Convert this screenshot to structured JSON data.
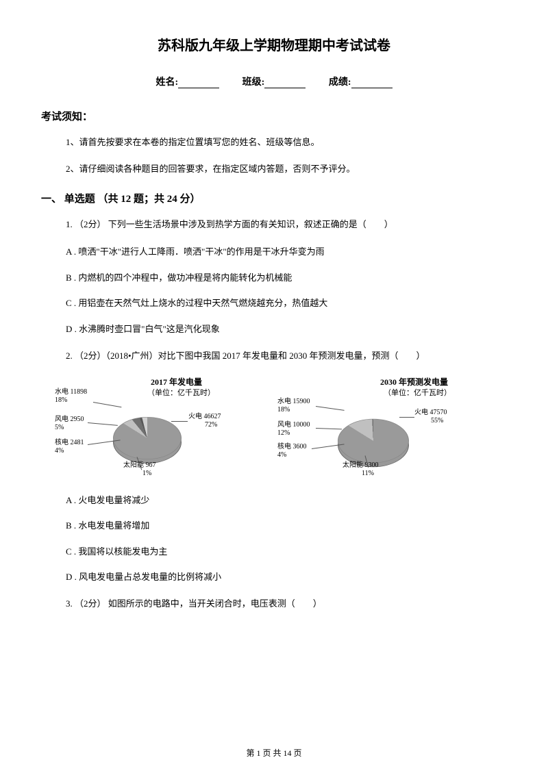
{
  "title": "苏科版九年级上学期物理期中考试试卷",
  "info": {
    "name_label": "姓名:",
    "class_label": "班级:",
    "score_label": "成绩:"
  },
  "notice_head": "考试须知：",
  "instructions": [
    "1、请首先按要求在本卷的指定位置填写您的姓名、班级等信息。",
    "2、请仔细阅读各种题目的回答要求，在指定区域内答题，否则不予评分。"
  ],
  "section1_title": "一、 单选题 （共 12 题；共 24 分）",
  "q1": {
    "stem": "1. （2分） 下列一些生活场景中涉及到热学方面的有关知识，叙述正确的是（　　）",
    "opts": [
      "A . 喷洒\"干冰\"进行人工降雨．喷洒\"干冰\"的作用是干冰升华变为雨",
      "B . 内燃机的四个冲程中，做功冲程是将内能转化为机械能",
      "C . 用铝壶在天然气灶上烧水的过程中天然气燃烧越充分，热值越大",
      "D . 水沸腾时壶口冒\"白气\"这是汽化现象"
    ]
  },
  "q2": {
    "stem": "2. （2分）（2018•广州）对比下图中我国 2017 年发电量和 2030 年预测发电量，预测（　　）",
    "opts": [
      "A . 火电发电量将减少",
      "B . 水电发电量将增加",
      "C . 我国将以核能发电为主",
      "D . 风电发电量占总发电量的比例将减小"
    ]
  },
  "q3": {
    "stem": "3. （2分） 如图所示的电路中，当开关闭合时，电压表测（　　）"
  },
  "chart2017": {
    "title": "2017 年发电量",
    "subtitle": "（单位：亿千瓦时）",
    "labels": {
      "hydro": "水电",
      "wind": "风电",
      "nuclear": "核电",
      "solar": "太阳能",
      "thermal": "火电"
    },
    "values": {
      "hydro_v": "11898",
      "hydro_p": "18%",
      "wind_v": "2950",
      "wind_p": "5%",
      "nuclear_v": "2481",
      "nuclear_p": "4%",
      "solar_v": "967",
      "solar_p": "1%",
      "thermal_v": "46627",
      "thermal_p": "72%"
    },
    "colors": {
      "thermal": "#d0d0d0",
      "hydro": "#9a9a9a",
      "wind": "#c0c0c0",
      "nuclear": "#707070",
      "solar": "#585858"
    },
    "slices_deg": {
      "thermal": 259,
      "hydro": 65,
      "wind": 18,
      "nuclear": 14,
      "solar": 4
    }
  },
  "chart2030": {
    "title": "2030 年预测发电量",
    "subtitle": "（单位：亿千瓦时）",
    "labels": {
      "hydro": "水电",
      "wind": "风电",
      "nuclear": "核电",
      "solar": "太阳能",
      "thermal": "火电"
    },
    "values": {
      "hydro_v": "15900",
      "hydro_p": "18%",
      "wind_v": "10000",
      "wind_p": "12%",
      "nuclear_v": "3600",
      "nuclear_p": "4%",
      "solar_v": "9300",
      "solar_p": "11%",
      "thermal_v": "47570",
      "thermal_p": "55%"
    },
    "colors": {
      "thermal": "#d0d0d0",
      "hydro": "#9a9a9a",
      "wind": "#c0c0c0",
      "nuclear": "#707070",
      "solar": "#585858"
    },
    "slices_deg": {
      "thermal": 198,
      "hydro": 65,
      "wind": 43,
      "nuclear": 14,
      "solar": 40
    }
  },
  "footer": {
    "prefix": "第 ",
    "page": "1",
    "mid": " 页 共 ",
    "total": "14",
    "suffix": " 页"
  }
}
